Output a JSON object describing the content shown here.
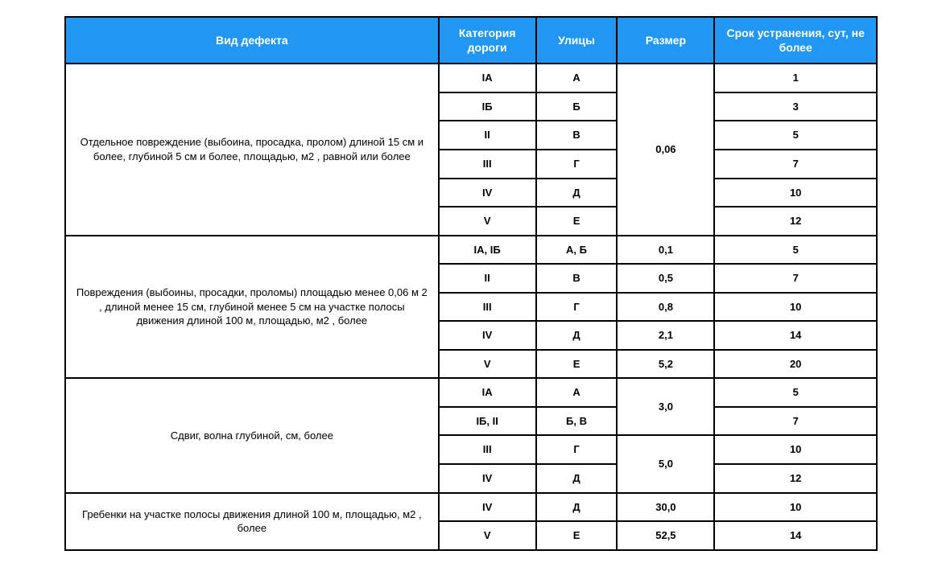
{
  "table": {
    "type": "table",
    "header_bg_color": "#2196f3",
    "header_text_color": "#ffffff",
    "border_color": "#000000",
    "text_color": "#000000",
    "background_color": "#ffffff",
    "header_fontsize": 14,
    "cell_fontsize": 13,
    "border_width": 2,
    "columns": {
      "defect": "Вид дефекта",
      "category": "Категория дороги",
      "street": "Улицы",
      "size": "Размер",
      "term": "Срок устранения, сут, не более"
    },
    "column_widths_pct": [
      46,
      12,
      10,
      12,
      20
    ],
    "groups": [
      {
        "desc": "Отдельное повреждение (выбоина, просадка, пролом) длиной 15 см и более, глубиной 5 см и более, площадью, м2 , равной или более",
        "size_merged": "0,06",
        "rows": [
          {
            "category": "IА",
            "street": "А",
            "term": "1"
          },
          {
            "category": "IБ",
            "street": "Б",
            "term": "3"
          },
          {
            "category": "II",
            "street": "В",
            "term": "5"
          },
          {
            "category": "III",
            "street": "Г",
            "term": "7"
          },
          {
            "category": "IV",
            "street": "Д",
            "term": "10"
          },
          {
            "category": "V",
            "street": "Е",
            "term": "12"
          }
        ]
      },
      {
        "desc": "Повреждения (выбоины, просадки, проломы) площадью менее 0,06 м 2 , длиной менее 15 см, глубиной менее 5 см на участке полосы движения длиной 100 м, площадью, м2 , более",
        "rows": [
          {
            "category": "IА, IБ",
            "street": "А, Б",
            "size": "0,1",
            "term": "5"
          },
          {
            "category": "II",
            "street": "В",
            "size": "0,5",
            "term": "7"
          },
          {
            "category": "III",
            "street": "Г",
            "size": "0,8",
            "term": "10"
          },
          {
            "category": "IV",
            "street": "Д",
            "size": "2,1",
            "term": "14"
          },
          {
            "category": "V",
            "street": "Е",
            "size": "5,2",
            "term": "20"
          }
        ]
      },
      {
        "desc": "Сдвиг, волна глубиной, см, более",
        "size_spans": [
          {
            "start": 0,
            "span": 2,
            "value": "3,0"
          },
          {
            "start": 2,
            "span": 2,
            "value": "5,0"
          }
        ],
        "rows": [
          {
            "category": "IА",
            "street": "А",
            "term": "5"
          },
          {
            "category": "IБ, II",
            "street": "Б, В",
            "term": "7"
          },
          {
            "category": "III",
            "street": "Г",
            "term": "10"
          },
          {
            "category": "IV",
            "street": "Д",
            "term": "12"
          }
        ]
      },
      {
        "desc": "Гребенки на участке полосы движения длиной 100 м, площадью, м2 , более",
        "rows": [
          {
            "category": "IV",
            "street": "Д",
            "size": "30,0",
            "term": "10"
          },
          {
            "category": "V",
            "street": "Е",
            "size": "52,5",
            "term": "14"
          }
        ]
      }
    ]
  }
}
